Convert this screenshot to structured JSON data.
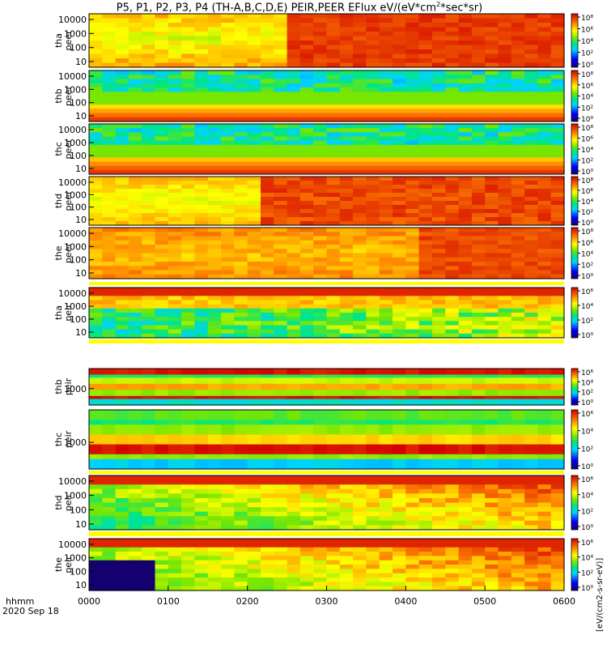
{
  "title": {
    "pre": "P5, P1, P2, P3, P4 (TH-A,B,C,D,E) PEIR,PEER EFlux eV/(eV*cm",
    "sup": "2",
    "post": "*sec*sr)"
  },
  "time_axis": {
    "label": "hhmm",
    "date": "2020 Sep 18",
    "ticks": [
      "0000",
      "0100",
      "0200",
      "0300",
      "0400",
      "0500",
      "0600"
    ]
  },
  "colorbar": {
    "ticks": [
      "10⁶",
      "10⁴",
      "10²",
      "10⁰"
    ],
    "label": "[eV/(cm2-s-sr-eV)]"
  },
  "chart_data": {
    "type": "heatmap",
    "x_range_hhmm": [
      "0000",
      "0600"
    ],
    "z_scale": "log",
    "colormap": "rainbow (blue-low, red-high)",
    "panels": [
      {
        "probe": "tha",
        "instrument": "peer",
        "y_label": [
          "tha",
          "peer"
        ],
        "y_scale": "log",
        "y_ticks": [
          "10000",
          "1000",
          "100",
          "10"
        ],
        "color_ticks": [
          "10⁸",
          "10⁶",
          "10⁴",
          "10²",
          "10⁰"
        ]
      },
      {
        "probe": "thb",
        "instrument": "peer",
        "y_label": [
          "thb",
          "peer"
        ],
        "y_scale": "log",
        "y_ticks": [
          "10000",
          "1000",
          "100",
          "10"
        ],
        "color_ticks": [
          "10⁸",
          "10⁶",
          "10⁴",
          "10²",
          "10⁰"
        ]
      },
      {
        "probe": "thc",
        "instrument": "peer",
        "y_label": [
          "thc",
          "peer"
        ],
        "y_scale": "log",
        "y_ticks": [
          "10000",
          "1000",
          "100",
          "10"
        ],
        "color_ticks": [
          "10⁸",
          "10⁶",
          "10⁴",
          "10²",
          "10⁰"
        ]
      },
      {
        "probe": "thd",
        "instrument": "peer",
        "y_label": [
          "thd",
          "peer"
        ],
        "y_scale": "log",
        "y_ticks": [
          "10000",
          "1000",
          "100",
          "10"
        ],
        "color_ticks": [
          "10⁸",
          "10⁶",
          "10⁴",
          "10²",
          "10⁰"
        ]
      },
      {
        "probe": "the",
        "instrument": "peer",
        "y_label": [
          "the",
          "peer"
        ],
        "y_scale": "log",
        "y_ticks": [
          "10000",
          "1000",
          "100",
          "10"
        ],
        "color_ticks": [
          "10⁸",
          "10⁶",
          "10⁴",
          "10²",
          "10⁰"
        ]
      },
      {
        "probe": "tha",
        "instrument": "peir",
        "y_label": [
          "tha",
          "peir"
        ],
        "y_scale": "log",
        "y_ticks": [
          "10000",
          "1000",
          "100",
          "10"
        ],
        "color_ticks": [
          "10⁶",
          "10⁴",
          "10²",
          "10⁰"
        ]
      },
      {
        "probe": "thb",
        "instrument": "peir",
        "y_label": [
          "thb",
          "peir"
        ],
        "y_scale": "log",
        "y_ticks": [
          "1000"
        ],
        "color_ticks": [
          "10⁶",
          "10⁴",
          "10²",
          "10⁰"
        ]
      },
      {
        "probe": "thc",
        "instrument": "peir",
        "y_label": [
          "thc",
          "peir"
        ],
        "y_scale": "log",
        "y_ticks": [
          "1000"
        ],
        "color_ticks": [
          "10⁶",
          "10⁴",
          "10²",
          "10⁰"
        ]
      },
      {
        "probe": "thd",
        "instrument": "peir",
        "y_label": [
          "thd",
          "peir"
        ],
        "y_scale": "log",
        "y_ticks": [
          "10000",
          "1000",
          "100",
          "10"
        ],
        "color_ticks": [
          "10⁶",
          "10⁴",
          "10²",
          "10⁰"
        ]
      },
      {
        "probe": "the",
        "instrument": "peir",
        "y_label": [
          "the",
          "peir"
        ],
        "y_scale": "log",
        "y_ticks": [
          "10000",
          "1000",
          "100",
          "10"
        ],
        "color_ticks": [
          "10⁶",
          "10⁴",
          "10²",
          "10⁰"
        ]
      }
    ]
  }
}
